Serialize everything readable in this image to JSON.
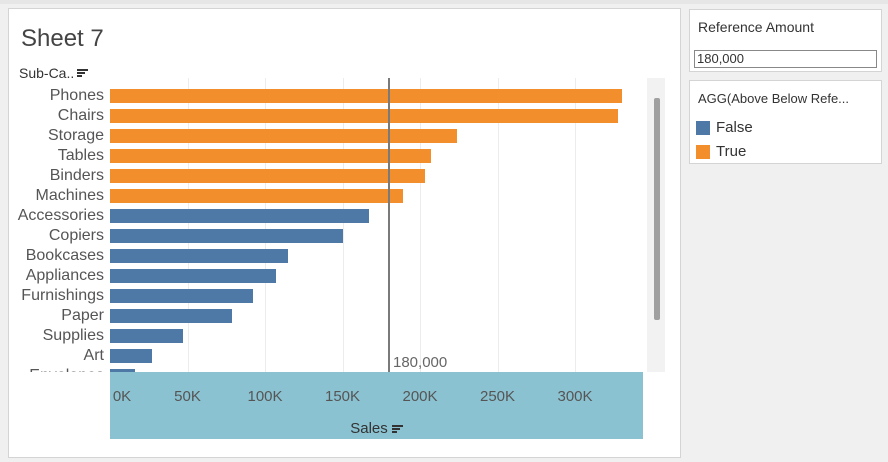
{
  "sheet": {
    "title": "Sheet 7",
    "row_header": "Sub-Ca.."
  },
  "reference": {
    "label": "180,000",
    "value": 180000
  },
  "parameter_card": {
    "title": "Reference Amount",
    "value": "180,000"
  },
  "legend_card": {
    "title": "AGG(Above Below Refe...",
    "items": [
      {
        "label": "False",
        "color": "#4e79a7"
      },
      {
        "label": "True",
        "color": "#f28e2b"
      }
    ]
  },
  "colors": {
    "above": "#f28e2b",
    "below": "#4e79a7",
    "axis_band": "#8bc2d1"
  },
  "chart_data": {
    "type": "bar",
    "orientation": "horizontal",
    "categories": [
      "Phones",
      "Chairs",
      "Storage",
      "Tables",
      "Binders",
      "Machines",
      "Accessories",
      "Copiers",
      "Bookcases",
      "Appliances",
      "Furnishings",
      "Paper",
      "Supplies",
      "Art",
      "Envelopes"
    ],
    "values": [
      330000,
      328000,
      224000,
      207000,
      203000,
      189000,
      167000,
      150000,
      115000,
      107000,
      92000,
      79000,
      47000,
      27000,
      16000
    ],
    "above_reference": [
      true,
      true,
      true,
      true,
      true,
      true,
      false,
      false,
      false,
      false,
      false,
      false,
      false,
      false,
      false
    ],
    "xlabel": "Sales",
    "xticks": [
      "0K",
      "50K",
      "100K",
      "150K",
      "200K",
      "250K",
      "300K"
    ],
    "xlim": [
      0,
      340000
    ],
    "reference_line": 180000,
    "grid": true
  }
}
